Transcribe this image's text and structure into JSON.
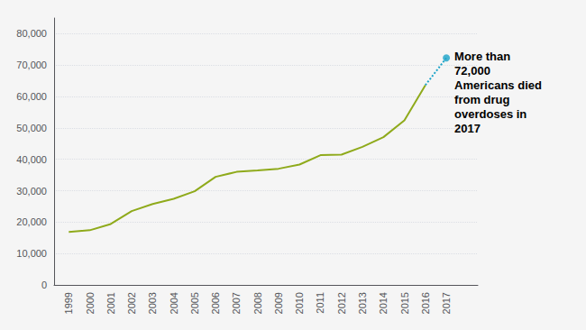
{
  "chart_data": {
    "type": "line",
    "annotation": "More than\n72,000\nAmericans died\nfrom drug\noverdoses in\n2017",
    "x": [
      1999,
      2000,
      2001,
      2002,
      2003,
      2004,
      2005,
      2006,
      2007,
      2008,
      2009,
      2010,
      2011,
      2012,
      2013,
      2014,
      2015,
      2016,
      2017
    ],
    "series": [
      {
        "type": "line",
        "color": "#8faa1b",
        "marker": "none",
        "line_style": "solid",
        "values": [
          16849,
          17415,
          19394,
          23518,
          25785,
          27424,
          29813,
          34425,
          36010,
          36450,
          37004,
          38329,
          41340,
          41502,
          43982,
          47055,
          52404,
          63632,
          null
        ]
      },
      {
        "type": "line",
        "color": "#1aa3c8",
        "marker": "none",
        "line_style": "dotted",
        "values": [
          null,
          null,
          null,
          null,
          null,
          null,
          null,
          null,
          null,
          null,
          null,
          null,
          null,
          null,
          null,
          null,
          null,
          63632,
          72287
        ]
      },
      {
        "type": "scatter",
        "color": "#1aa3c8",
        "marker": "circle",
        "values": [
          null,
          null,
          null,
          null,
          null,
          null,
          null,
          null,
          null,
          null,
          null,
          null,
          null,
          null,
          null,
          null,
          null,
          null,
          72287
        ]
      }
    ],
    "xlim": [
      1998.3,
      2018.5
    ],
    "xticks": [
      1999,
      2000,
      2001,
      2002,
      2003,
      2004,
      2005,
      2006,
      2007,
      2008,
      2009,
      2010,
      2011,
      2012,
      2013,
      2014,
      2015,
      2016,
      2017
    ],
    "ylim": [
      0,
      85000
    ],
    "yticks": [
      0,
      {
        "value": 10000,
        "label": "10,000"
      },
      {
        "value": 20000,
        "label": "20,000"
      },
      {
        "value": 30000,
        "label": "30,000"
      },
      {
        "value": 40000,
        "label": "40,000"
      },
      {
        "value": 50000,
        "label": "50,000"
      },
      {
        "value": 60000,
        "label": "60,000"
      },
      {
        "value": 70000,
        "label": "70,000"
      },
      {
        "value": 80000,
        "label": "80,000"
      }
    ],
    "grid": true
  }
}
